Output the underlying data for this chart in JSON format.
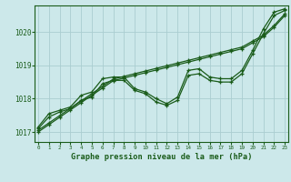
{
  "xlabel": "Graphe pression niveau de la mer (hPa)",
  "bg_color": "#cce8ea",
  "grid_color": "#aacdd0",
  "line_color": "#1a5c1a",
  "marker_color": "#1a5c1a",
  "ylim": [
    1016.7,
    1020.8
  ],
  "yticks": [
    1017,
    1018,
    1019,
    1020
  ],
  "xlim": [
    -0.3,
    23.3
  ],
  "xticks": [
    0,
    1,
    2,
    3,
    4,
    5,
    6,
    7,
    8,
    9,
    10,
    11,
    12,
    13,
    14,
    15,
    16,
    17,
    18,
    19,
    20,
    21,
    22,
    23
  ],
  "s1": [
    1017.15,
    1017.55,
    1017.65,
    1017.75,
    1018.1,
    1018.2,
    1018.6,
    1018.65,
    1018.65,
    1018.3,
    1018.2,
    1018.0,
    1017.85,
    1018.05,
    1018.85,
    1018.9,
    1018.65,
    1018.6,
    1018.6,
    1018.85,
    1019.45,
    1020.1,
    1020.6,
    1020.7
  ],
  "s2": [
    1017.1,
    1017.45,
    1017.6,
    1017.7,
    1017.95,
    1018.05,
    1018.45,
    1018.55,
    1018.55,
    1018.25,
    1018.15,
    1017.9,
    1017.8,
    1017.95,
    1018.7,
    1018.75,
    1018.55,
    1018.5,
    1018.5,
    1018.75,
    1019.35,
    1019.95,
    1020.5,
    1020.65
  ],
  "s3_linear": [
    1017.05,
    1017.27,
    1017.49,
    1017.71,
    1017.93,
    1018.15,
    1018.37,
    1018.59,
    1018.67,
    1018.75,
    1018.83,
    1018.91,
    1018.99,
    1019.07,
    1019.15,
    1019.23,
    1019.31,
    1019.39,
    1019.47,
    1019.55,
    1019.73,
    1019.91,
    1020.2,
    1020.55
  ],
  "s4_linear": [
    1017.0,
    1017.22,
    1017.44,
    1017.66,
    1017.88,
    1018.1,
    1018.32,
    1018.54,
    1018.62,
    1018.7,
    1018.78,
    1018.86,
    1018.94,
    1019.02,
    1019.1,
    1019.18,
    1019.26,
    1019.34,
    1019.42,
    1019.5,
    1019.68,
    1019.86,
    1020.15,
    1020.5
  ],
  "figsize": [
    3.2,
    2.0
  ],
  "dpi": 100
}
